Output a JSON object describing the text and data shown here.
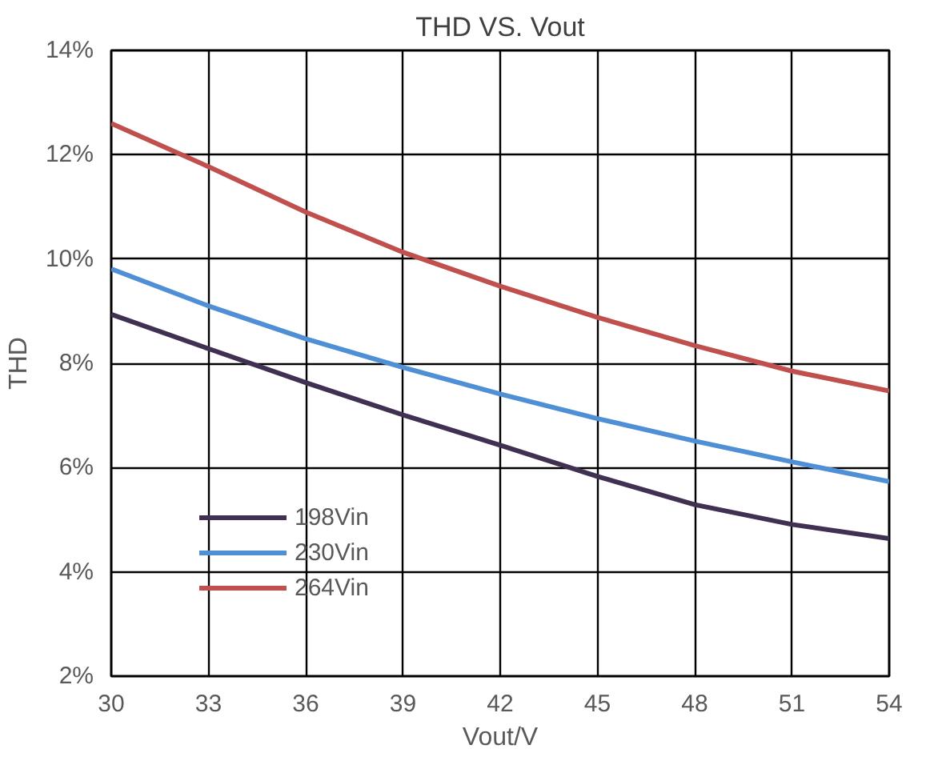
{
  "chart_data": {
    "type": "line",
    "title": "THD VS. Vout",
    "xlabel": "Vout/V",
    "ylabel": "THD",
    "x": [
      30,
      33,
      36,
      39,
      42,
      45,
      48,
      51,
      54
    ],
    "series": [
      {
        "name": "198Vin",
        "color": "#403152",
        "values": [
          8.94,
          8.28,
          7.63,
          7.01,
          6.43,
          5.83,
          5.29,
          4.91,
          4.64
        ]
      },
      {
        "name": "230Vin",
        "color": "#4f8fd6",
        "values": [
          9.81,
          9.1,
          8.47,
          7.92,
          7.41,
          6.94,
          6.51,
          6.11,
          5.73
        ]
      },
      {
        "name": "264Vin",
        "color": "#c0504d",
        "values": [
          12.6,
          11.77,
          10.9,
          10.13,
          9.48,
          8.88,
          8.34,
          7.85,
          7.47
        ]
      }
    ],
    "xlim": [
      30,
      54
    ],
    "xticks": [
      30,
      33,
      36,
      39,
      42,
      45,
      48,
      51,
      54
    ],
    "ylim": [
      2,
      14
    ],
    "yticks": [
      {
        "value": 2,
        "label": "2%"
      },
      {
        "value": 4,
        "label": "4%"
      },
      {
        "value": 6,
        "label": "6%"
      },
      {
        "value": 8,
        "label": "8%"
      },
      {
        "value": 10,
        "label": "10%"
      },
      {
        "value": 12,
        "label": "12%"
      },
      {
        "value": 14,
        "label": "14%"
      }
    ],
    "grid": true,
    "legend": "bottom left",
    "line_style": "solid"
  }
}
